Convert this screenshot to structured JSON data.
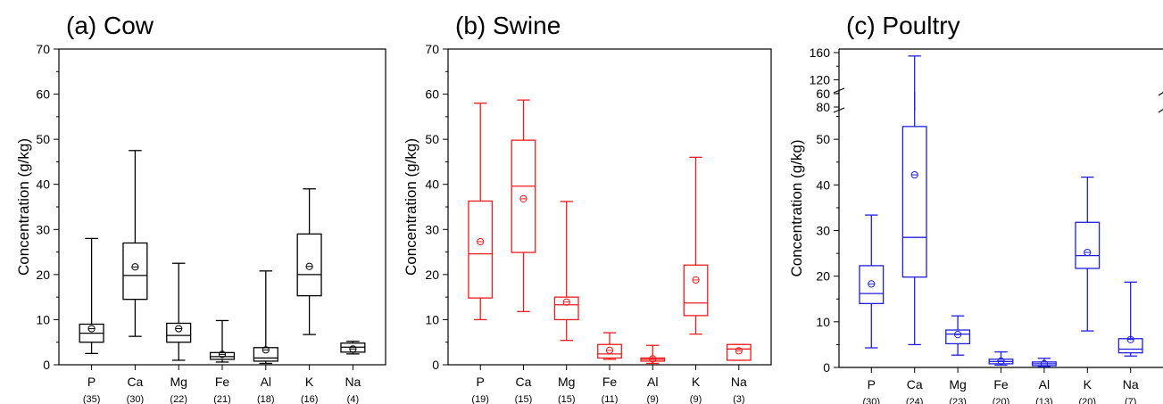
{
  "chart_data": [
    {
      "type": "box",
      "title": "(a) Cow",
      "ylabel": "Concentration (g/kg)",
      "ylim": [
        0,
        70
      ],
      "yticks": [
        0,
        10,
        20,
        30,
        40,
        50,
        60,
        70
      ],
      "color": "#000000",
      "categories": [
        "P",
        "Ca",
        "Mg",
        "Fe",
        "Al",
        "K",
        "Na"
      ],
      "counts": [
        "(35)",
        "(30)",
        "(22)",
        "(21)",
        "(18)",
        "(16)",
        "(4)"
      ],
      "boxes": [
        {
          "min": 2.5,
          "q1": 5.0,
          "median": 7.0,
          "q3": 9.0,
          "max": 28.0,
          "mean": 8.0
        },
        {
          "min": 6.3,
          "q1": 14.5,
          "median": 19.8,
          "q3": 27.0,
          "max": 47.5,
          "mean": 21.7
        },
        {
          "min": 1.0,
          "q1": 5.0,
          "median": 6.5,
          "q3": 9.2,
          "max": 22.5,
          "mean": 8.0
        },
        {
          "min": 0.6,
          "q1": 1.2,
          "median": 1.8,
          "q3": 2.7,
          "max": 9.8,
          "mean": 2.3
        },
        {
          "min": 0.3,
          "q1": 0.8,
          "median": 1.5,
          "q3": 3.8,
          "max": 20.8,
          "mean": 3.3
        },
        {
          "min": 6.7,
          "q1": 15.3,
          "median": 20.0,
          "q3": 29.0,
          "max": 39.0,
          "mean": 21.8
        },
        {
          "min": 2.4,
          "q1": 2.8,
          "median": 3.9,
          "q3": 4.8,
          "max": 5.2,
          "mean": 3.5
        }
      ]
    },
    {
      "type": "box",
      "title": "(b) Swine",
      "ylabel": "Concentration (g/kg)",
      "ylim": [
        0,
        70
      ],
      "yticks": [
        0,
        10,
        20,
        30,
        40,
        50,
        60,
        70
      ],
      "color": "#ee1c1c",
      "categories": [
        "P",
        "Ca",
        "Mg",
        "Fe",
        "Al",
        "K",
        "Na"
      ],
      "counts": [
        "(19)",
        "(15)",
        "(15)",
        "(11)",
        "(9)",
        "(9)",
        "(3)"
      ],
      "boxes": [
        {
          "min": 10.0,
          "q1": 14.8,
          "median": 24.6,
          "q3": 36.3,
          "max": 58.0,
          "mean": 27.3
        },
        {
          "min": 11.8,
          "q1": 24.9,
          "median": 39.6,
          "q3": 49.8,
          "max": 58.7,
          "mean": 36.8
        },
        {
          "min": 5.4,
          "q1": 10.0,
          "median": 13.3,
          "q3": 15.0,
          "max": 36.2,
          "mean": 13.9
        },
        {
          "min": 1.2,
          "q1": 1.5,
          "median": 2.4,
          "q3": 4.5,
          "max": 7.1,
          "mean": 3.2
        },
        {
          "min": 0.3,
          "q1": 0.8,
          "median": 1.2,
          "q3": 1.5,
          "max": 4.3,
          "mean": 1.3
        },
        {
          "min": 6.8,
          "q1": 10.9,
          "median": 13.7,
          "q3": 22.1,
          "max": 46.0,
          "mean": 18.8
        },
        {
          "min": 1.0,
          "q1": 1.0,
          "median": 3.5,
          "q3": 4.5,
          "max": 4.5,
          "mean": 3.1
        }
      ]
    },
    {
      "type": "box",
      "title": "(c) Poultry",
      "ylabel": "Concentration (g/kg)",
      "ylim": [
        0,
        160
      ],
      "yaxis_break": [
        60,
        80
      ],
      "yticks": [
        0,
        10,
        20,
        30,
        40,
        50,
        60,
        80,
        120,
        160
      ],
      "color": "#1f1fe0",
      "categories": [
        "P",
        "Ca",
        "Mg",
        "Fe",
        "Al",
        "K",
        "Na"
      ],
      "counts": [
        "(30)",
        "(24)",
        "(23)",
        "(20)",
        "(13)",
        "(20)",
        "(7)"
      ],
      "boxes": [
        {
          "min": 4.3,
          "q1": 14.0,
          "median": 16.2,
          "q3": 22.3,
          "max": 33.4,
          "mean": 18.3
        },
        {
          "min": 5.0,
          "q1": 19.8,
          "median": 28.5,
          "q3": 52.8,
          "max": 155.0,
          "mean": 42.2
        },
        {
          "min": 2.7,
          "q1": 5.2,
          "median": 7.3,
          "q3": 8.2,
          "max": 11.3,
          "mean": 7.2
        },
        {
          "min": 0.5,
          "q1": 0.8,
          "median": 1.3,
          "q3": 1.8,
          "max": 3.4,
          "mean": 1.4
        },
        {
          "min": 0.2,
          "q1": 0.4,
          "median": 0.8,
          "q3": 1.2,
          "max": 2.0,
          "mean": 0.8
        },
        {
          "min": 8.0,
          "q1": 21.7,
          "median": 24.5,
          "q3": 31.8,
          "max": 41.7,
          "mean": 25.2
        },
        {
          "min": 2.5,
          "q1": 3.2,
          "median": 4.0,
          "q3": 6.3,
          "max": 18.7,
          "mean": 6.1
        }
      ]
    }
  ]
}
